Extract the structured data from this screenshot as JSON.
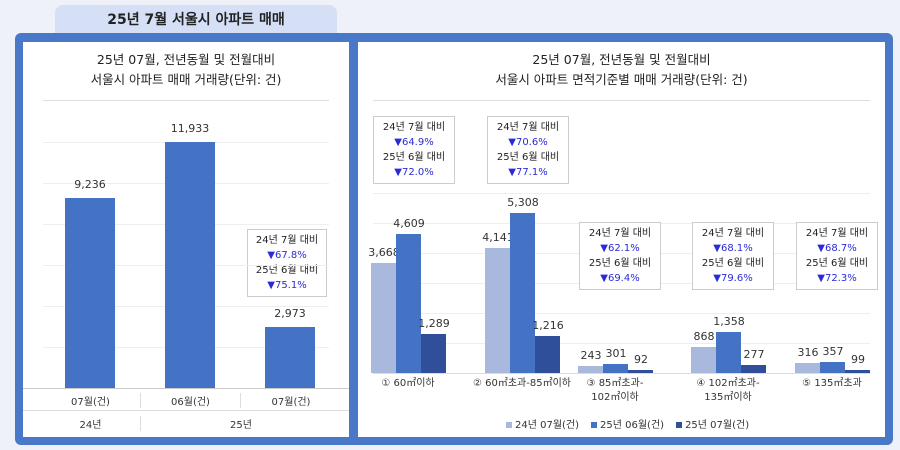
{
  "tab_title": "25년 7월 서울시 아파트 매매",
  "colors": {
    "frame": "#4a78c8",
    "bar_24_07": "#a9b9dd",
    "bar_25_06": "#4472c4",
    "bar_25_07": "#2f4f9b",
    "decline": "#2a2ad8"
  },
  "chart_data": [
    {
      "type": "bar",
      "title_line1": "25년 07월, 전년동월 및 전월대비",
      "title_line2": "서울시 아파트 매매 거래량(단위: 건)",
      "categories": [
        "07월(건)",
        "06월(건)",
        "07월(건)"
      ],
      "groups": [
        "24년",
        "25년"
      ],
      "values": [
        9236,
        11933,
        2973
      ],
      "data_labels": [
        "9,236",
        "11,933",
        "2,973"
      ],
      "annotation": {
        "line1": "24년 7월 대비",
        "pct1": "▼67.8%",
        "line2": "25년 6월 대비",
        "pct2": "▼75.1%"
      }
    },
    {
      "type": "bar",
      "title_line1": "25년 07월, 전년동월 및 전월대비",
      "title_line2": "서울시 아파트 면적기준별 매매 거래량(단위: 건)",
      "categories": [
        "① 60㎡이하",
        "② 60㎡초과-85㎡이하",
        "③ 85㎡초과-\n102㎡이하",
        "④ 102㎡초과-\n135㎡이하",
        "⑤ 135㎡초과"
      ],
      "series": [
        {
          "name": "24년 07월(건)",
          "values": [
            3668,
            4141,
            243,
            868,
            316
          ],
          "labels": [
            "3,668",
            "4,141",
            "243",
            "868",
            "316"
          ]
        },
        {
          "name": "25년 06월(건)",
          "values": [
            4609,
            5308,
            301,
            1358,
            357
          ],
          "labels": [
            "4,609",
            "5,308",
            "301",
            "1,358",
            "357"
          ]
        },
        {
          "name": "25년 07월(건)",
          "values": [
            1289,
            1216,
            92,
            277,
            99
          ],
          "labels": [
            "1,289",
            "1,216",
            "92",
            "277",
            "99"
          ]
        }
      ],
      "annotations": [
        {
          "line1": "24년 7월 대비",
          "pct1": "▼64.9%",
          "line2": "25년 6월 대비",
          "pct2": "▼72.0%"
        },
        {
          "line1": "24년 7월 대비",
          "pct1": "▼70.6%",
          "line2": "25년 6월 대비",
          "pct2": "▼77.1%"
        },
        {
          "line1": "24년 7월 대비",
          "pct1": "▼62.1%",
          "line2": "25년 6월 대비",
          "pct2": "▼69.4%"
        },
        {
          "line1": "24년 7월 대비",
          "pct1": "▼68.1%",
          "line2": "25년 6월 대비",
          "pct2": "▼79.6%"
        },
        {
          "line1": "24년 7월 대비",
          "pct1": "▼68.7%",
          "line2": "25년 6월 대비",
          "pct2": "▼72.3%"
        }
      ],
      "legend_position": "bottom"
    }
  ]
}
